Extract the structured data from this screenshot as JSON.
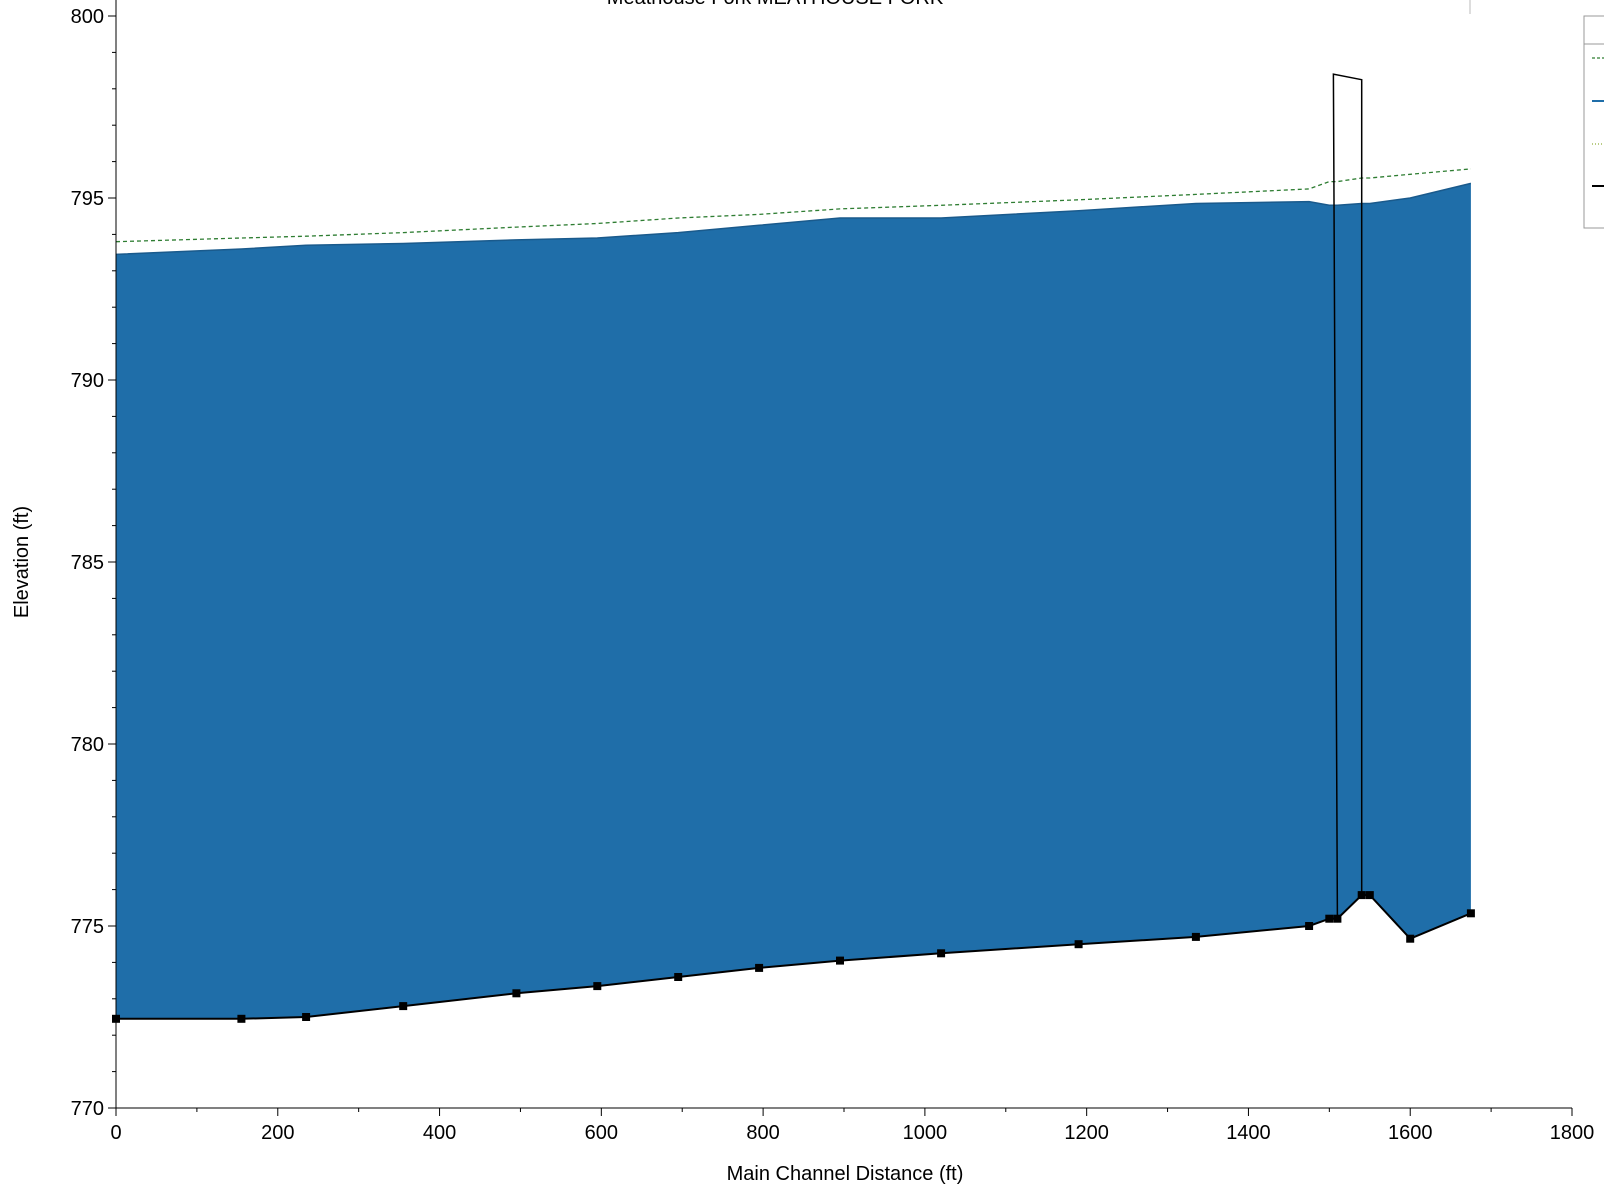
{
  "chart_data": {
    "type": "area",
    "title": "Meathouse Fork MEATHOUSE FORK",
    "xlabel": "Main Channel Distance (ft)",
    "ylabel": "Elevation (ft)",
    "xlim": [
      0,
      1800
    ],
    "ylim": [
      770,
      800
    ],
    "x_ticks": [
      "0",
      "200",
      "400",
      "600",
      "800",
      "1000",
      "1200",
      "1400",
      "1600",
      "1800"
    ],
    "y_ticks": [
      "770",
      "775",
      "780",
      "785",
      "790",
      "795",
      "800"
    ],
    "grid": false,
    "legend": "top-right (entries cut off)",
    "colors": {
      "water": "#1f6ea9",
      "ground": "#000000",
      "energy_grade": "#2e7d32",
      "bridge": "#000000"
    },
    "series": [
      {
        "x": [
          0,
          155,
          235,
          355,
          495,
          595,
          695,
          795,
          895,
          1020,
          1190,
          1335,
          1475,
          1500,
          1510,
          1540,
          1550,
          1600,
          1675
        ],
        "values": [
          793.45,
          793.6,
          793.7,
          793.75,
          793.85,
          793.9,
          794.05,
          794.25,
          794.45,
          794.45,
          794.65,
          794.85,
          794.9,
          794.8,
          794.8,
          794.85,
          794.85,
          795.0,
          795.4
        ]
      },
      {
        "x": [
          0,
          155,
          235,
          355,
          495,
          595,
          695,
          795,
          895,
          1020,
          1190,
          1335,
          1475,
          1500,
          1510,
          1540,
          1550,
          1600,
          1675
        ],
        "values": [
          793.8,
          793.9,
          793.95,
          794.05,
          794.2,
          794.3,
          794.45,
          794.55,
          794.7,
          794.8,
          794.95,
          795.1,
          795.25,
          795.45,
          795.45,
          795.55,
          795.55,
          795.65,
          795.8
        ]
      },
      {
        "x": [
          0,
          155,
          235,
          355,
          495,
          595,
          695,
          795,
          895,
          1020,
          1190,
          1335,
          1475,
          1500,
          1510,
          1540,
          1550,
          1600,
          1675
        ],
        "values": [
          772.45,
          772.45,
          772.5,
          772.8,
          773.15,
          773.35,
          773.6,
          773.85,
          774.05,
          774.25,
          774.5,
          774.7,
          775.0,
          775.2,
          775.2,
          775.85,
          775.85,
          774.65,
          775.35
        ],
        "markers": true
      }
    ],
    "bridge": {
      "x": [
        1505,
        1540
      ],
      "top": [
        798.4,
        798.25
      ]
    }
  }
}
